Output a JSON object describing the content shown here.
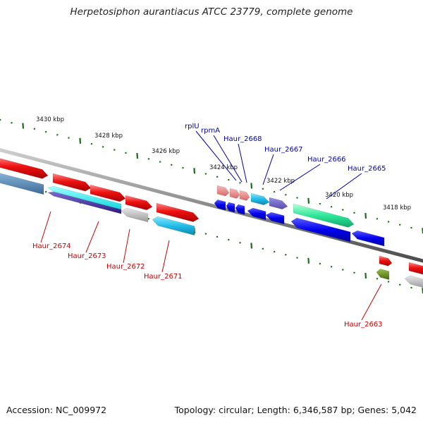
{
  "title": "Herpetosiphon aurantiacus ATCC 23779, complete genome",
  "footer": {
    "accession": "Accession: NC_009972",
    "summary": "Topology: circular; Length: 6,346,587 bp; Genes: 5,042"
  },
  "colors": {
    "backbone": "#8a8a8a",
    "forward_ticks": "#1a6e1a",
    "reverse_ticks": "#1a6e1a",
    "label_blue": "#0000b0",
    "label_red": "#cc0000"
  },
  "kbp_ruler": [
    {
      "label": "3430 kbp"
    },
    {
      "label": "3428 kbp"
    },
    {
      "label": "3426 kbp"
    },
    {
      "label": "3424 kbp"
    },
    {
      "label": "3422 kbp"
    },
    {
      "label": "3420 kbp"
    },
    {
      "label": "3418 kbp"
    }
  ],
  "gene_labels": {
    "top": [
      {
        "label": "rplU"
      },
      {
        "label": "rpmA"
      },
      {
        "label": "Haur_2668"
      },
      {
        "label": "Haur_2667"
      },
      {
        "label": "Haur_2666"
      },
      {
        "label": "Haur_2665"
      }
    ],
    "bottom": [
      {
        "label": "Haur_2674"
      },
      {
        "label": "Haur_2673"
      },
      {
        "label": "Haur_2672"
      },
      {
        "label": "Haur_2671"
      },
      {
        "label": "Haur_2663"
      }
    ]
  }
}
